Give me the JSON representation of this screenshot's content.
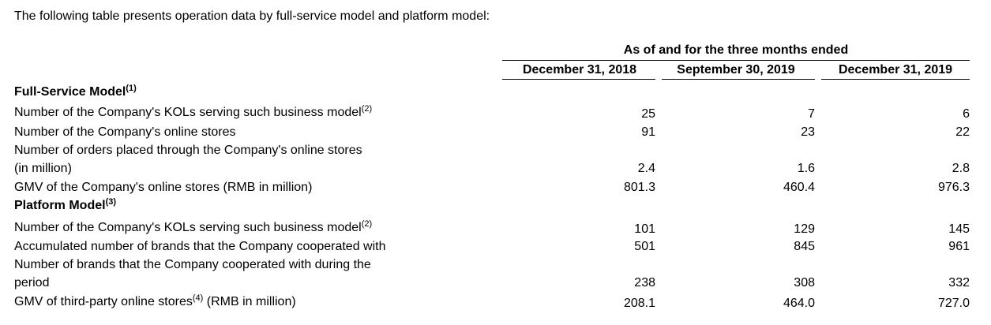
{
  "intro": "The following table presents operation data by full-service model and platform model:",
  "header": {
    "span": "As of and for the three months ended",
    "columns": [
      "December 31, 2018",
      "September 30, 2019",
      "December 31, 2019"
    ]
  },
  "full_service": {
    "title": "Full-Service Model",
    "note": "(1)",
    "rows": [
      {
        "label": "Number of the Company's KOLs serving such business model",
        "note": "(2)",
        "values": [
          "25",
          "7",
          "6"
        ]
      },
      {
        "label": "Number of the Company's online stores",
        "values": [
          "91",
          "23",
          "22"
        ]
      },
      {
        "label": "Number of orders placed through the Company's online stores",
        "label2": " (in million)",
        "values": [
          "2.4",
          "1.6",
          "2.8"
        ]
      },
      {
        "label": "GMV of the Company's online stores (RMB in million)",
        "values": [
          "801.3",
          "460.4",
          "976.3"
        ]
      }
    ]
  },
  "platform": {
    "title": "Platform Model",
    "note": "(3)",
    "rows": [
      {
        "label": "Number of the Company's KOLs serving such business model",
        "note": "(2)",
        "values": [
          "101",
          "129",
          "145"
        ]
      },
      {
        "label": "Accumulated number of brands that the Company cooperated with",
        "values": [
          "501",
          "845",
          "961"
        ]
      },
      {
        "label": "Number of brands that the Company cooperated with during the",
        "label2": " period",
        "values": [
          "238",
          "308",
          "332"
        ]
      },
      {
        "label": "GMV of third-party online stores",
        "note": "(4)",
        "label_suffix": " (RMB in million)",
        "values": [
          "208.1",
          "464.0",
          "727.0"
        ]
      }
    ]
  }
}
